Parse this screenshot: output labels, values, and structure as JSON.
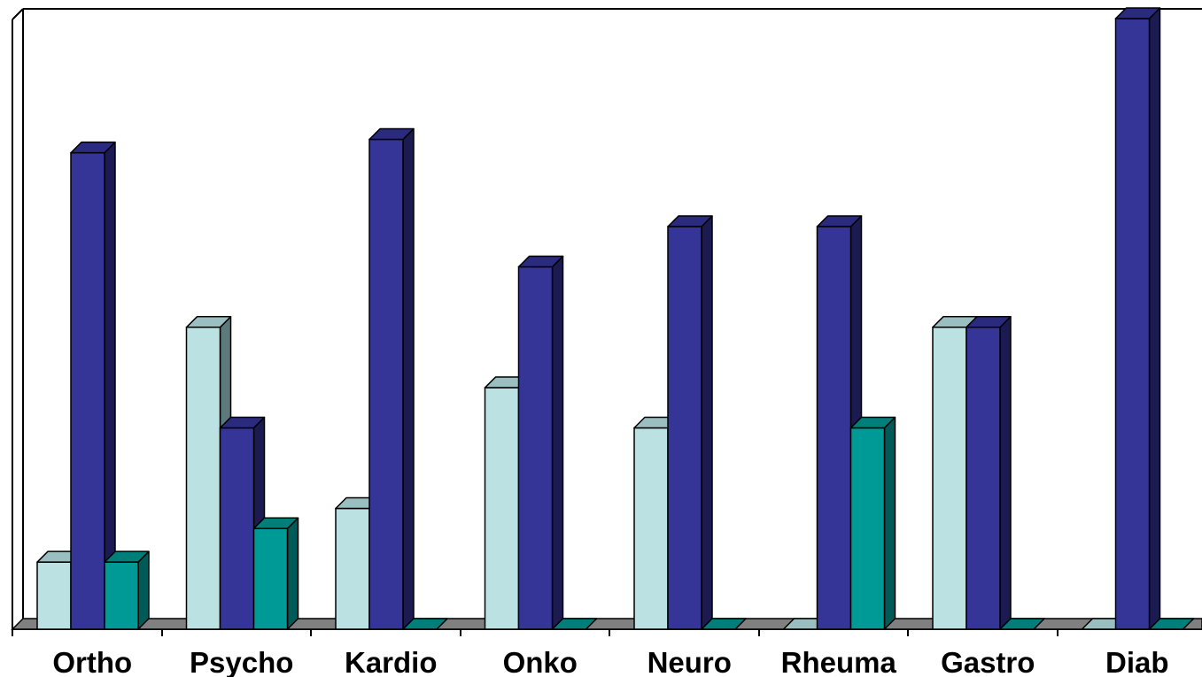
{
  "chart_data": {
    "type": "bar",
    "style": "3d-clustered-column",
    "categories": [
      "Ortho",
      "Psycho",
      "Kardio",
      "Onko",
      "Neuro",
      "Rheuma",
      "Gastro",
      "Diab"
    ],
    "series": [
      {
        "values": [
          1,
          4.5,
          1.8,
          3.6,
          3,
          0,
          4.5,
          0
        ]
      },
      {
        "values": [
          7.1,
          3,
          7.3,
          5.4,
          6,
          6,
          4.5,
          9.1
        ]
      },
      {
        "values": [
          1,
          1.5,
          0,
          0,
          0,
          3,
          0,
          0
        ]
      }
    ],
    "colors": {
      "series_front": [
        "#BBE1E3",
        "#353598",
        "#009A96"
      ],
      "series_side": [
        "#5C7A7C",
        "#1B1B52",
        "#005B58"
      ],
      "series_top": [
        "#9BBFC1",
        "#2A2A7E",
        "#007E7A"
      ],
      "floor": "#808080"
    },
    "ylim": [
      0,
      9.1
    ],
    "grid": false,
    "legend": "none",
    "title": "",
    "xlabel": "",
    "ylabel": ""
  }
}
